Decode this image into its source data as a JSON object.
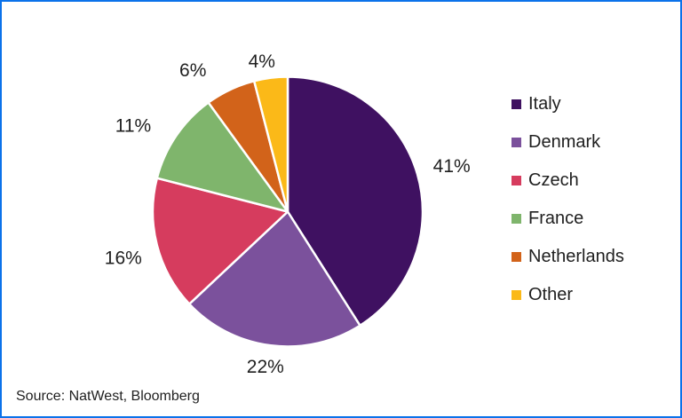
{
  "chart_data": {
    "type": "pie",
    "title": "",
    "start_angle_deg": 0,
    "direction": "clockwise",
    "value_labels": "outside",
    "legend_position": "right",
    "slices": [
      {
        "label": "Italy",
        "value": 41,
        "display": "41%",
        "color": "#3f1161"
      },
      {
        "label": "Denmark",
        "value": 22,
        "display": "22%",
        "color": "#7b519c"
      },
      {
        "label": "Czech",
        "value": 16,
        "display": "16%",
        "color": "#d63c5e"
      },
      {
        "label": "France",
        "value": 11,
        "display": "11%",
        "color": "#7fb56c"
      },
      {
        "label": "Netherlands",
        "value": 6,
        "display": "6%",
        "color": "#d2631a"
      },
      {
        "label": "Other",
        "value": 4,
        "display": "4%",
        "color": "#fbb918"
      }
    ]
  },
  "source": {
    "text": "Source: NatWest, Bloomberg"
  },
  "colors": {
    "frame_border": "#0b72ea",
    "text": "#1f1f1f",
    "background": "#ffffff",
    "slice_gap": "#ffffff"
  }
}
